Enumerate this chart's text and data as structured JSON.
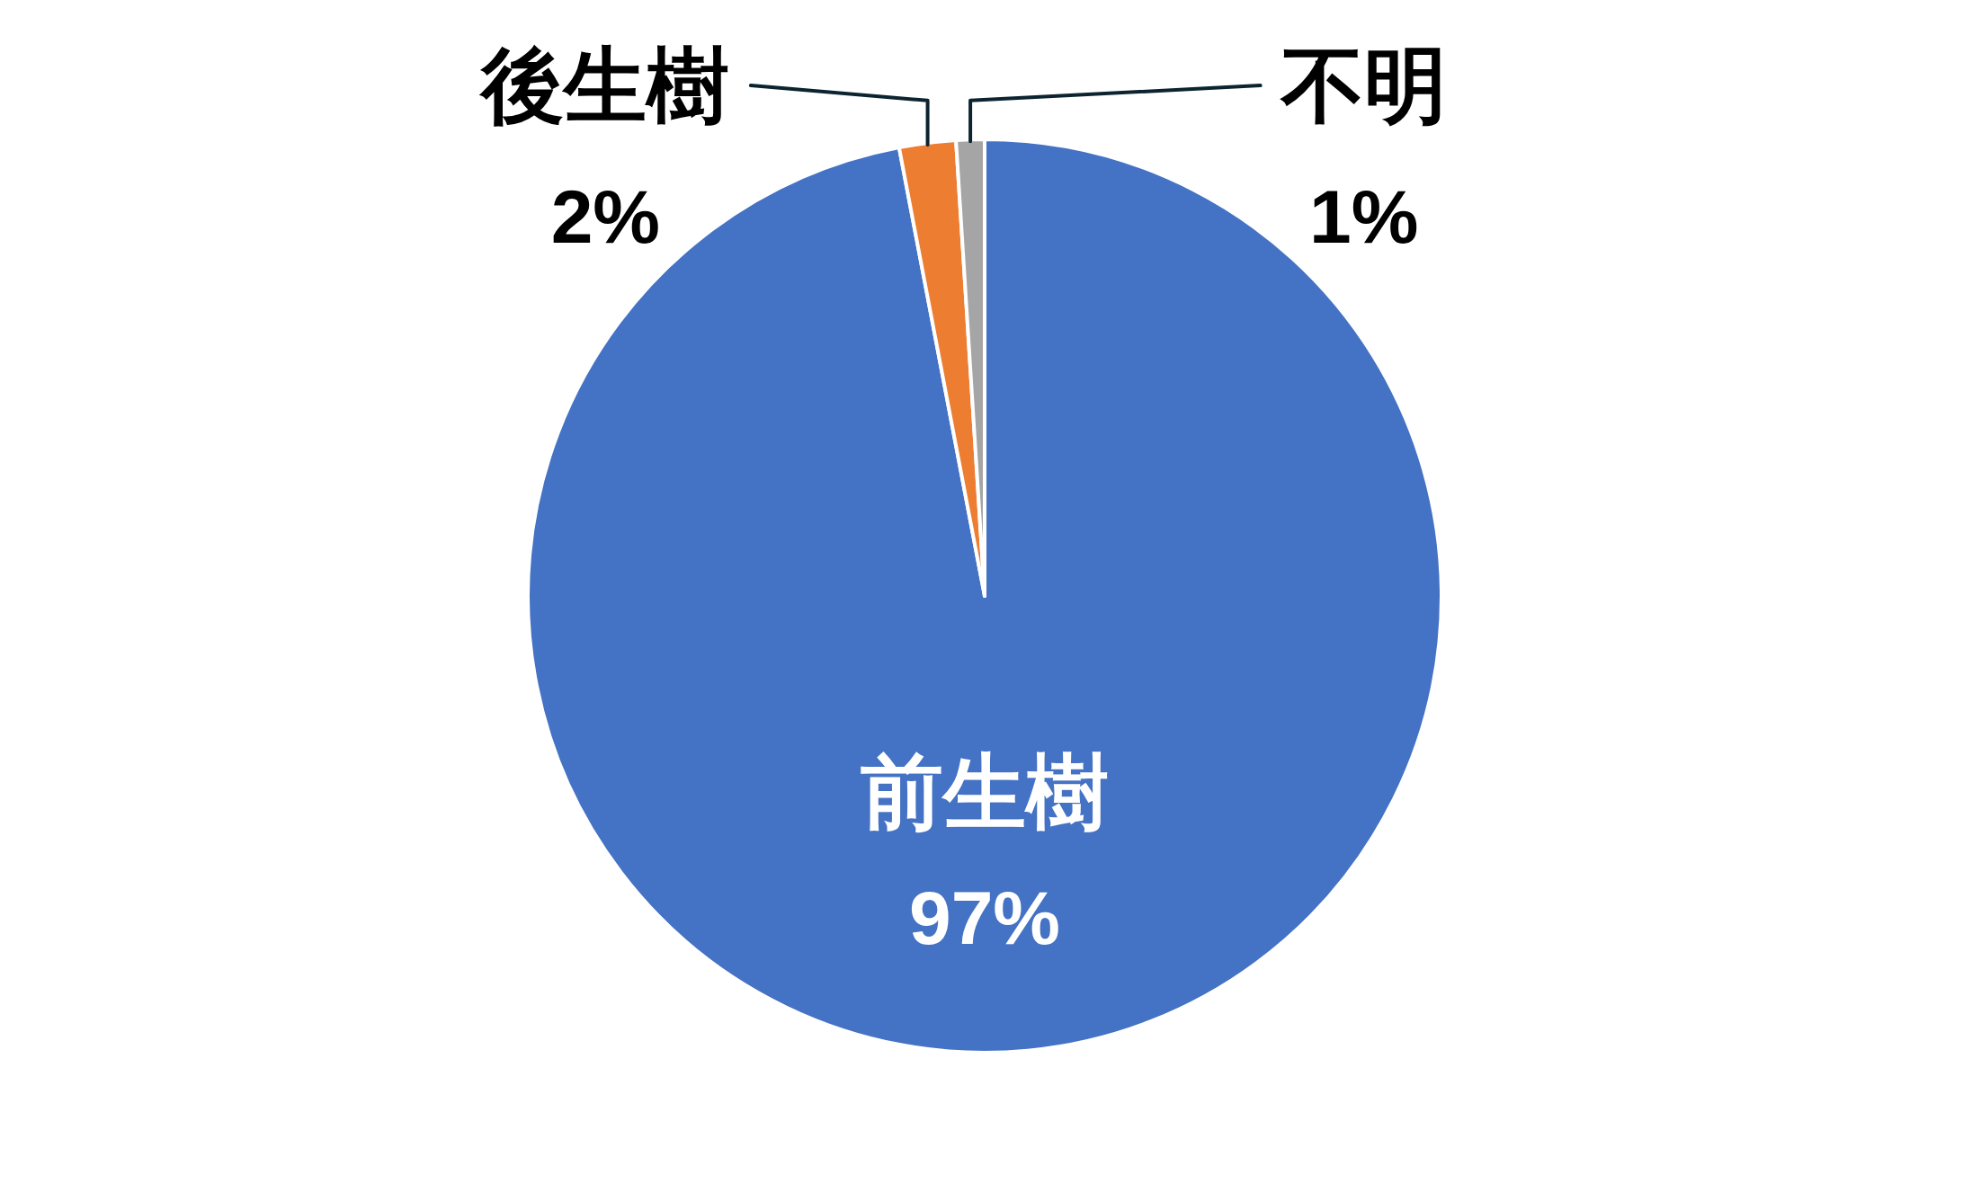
{
  "chart_data": {
    "type": "pie",
    "categories": [
      "前生樹",
      "後生樹",
      "不明"
    ],
    "values": [
      97,
      2,
      1
    ],
    "colors": [
      "#4472c4",
      "#ed7d31",
      "#a5a5a5"
    ],
    "value_labels": [
      "97%",
      "2%",
      "1%"
    ]
  }
}
